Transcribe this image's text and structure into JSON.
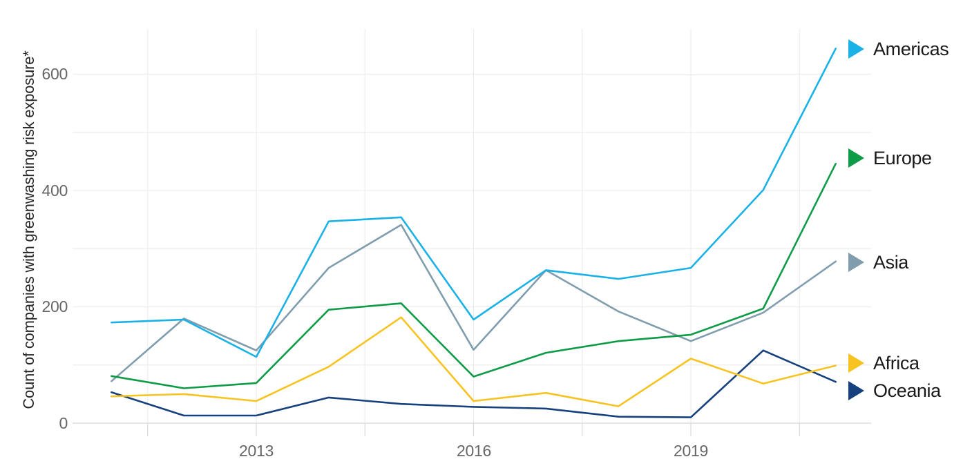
{
  "chart_data": {
    "type": "line",
    "title": "",
    "ylabel": "Count of companies with greenwashing risk exposure*",
    "xlabel": "",
    "x": [
      2011,
      2012,
      2013,
      2014,
      2015,
      2016,
      2017,
      2018,
      2019,
      2020,
      2021
    ],
    "x_tick_labels": [
      "2013",
      "2016",
      "2019"
    ],
    "x_tick_years": [
      2013,
      2016,
      2019
    ],
    "y_tick_labels": [
      "0",
      "200",
      "400",
      "600"
    ],
    "y_ticks": [
      0,
      200,
      400,
      600
    ],
    "ylim": [
      0,
      680
    ],
    "xlim": [
      2011,
      2021
    ],
    "grid": {
      "horizontal_values": [
        0,
        100,
        200,
        300,
        400,
        500,
        600
      ],
      "vertical_years": [
        2011.5,
        2013,
        2014.5,
        2016,
        2017.5,
        2019,
        2020.5
      ],
      "gridline_color": "#ededed",
      "zero_line_color": "#d8d8d8"
    },
    "legend_position": "right",
    "series": [
      {
        "name": "Americas",
        "color": "#1AB1E6",
        "values": [
          173,
          178,
          114,
          347,
          354,
          178,
          263,
          248,
          267,
          401,
          644
        ]
      },
      {
        "name": "Europe",
        "color": "#0E9B47",
        "values": [
          81,
          60,
          69,
          195,
          206,
          80,
          121,
          141,
          152,
          197,
          446
        ]
      },
      {
        "name": "Asia",
        "color": "#809DAE",
        "values": [
          72,
          180,
          125,
          267,
          341,
          126,
          263,
          192,
          141,
          190,
          278
        ]
      },
      {
        "name": "Africa",
        "color": "#F6C321",
        "values": [
          46,
          50,
          38,
          97,
          182,
          38,
          52,
          29,
          111,
          68,
          99
        ]
      },
      {
        "name": "Oceania",
        "color": "#17417D",
        "values": [
          53,
          13,
          13,
          44,
          33,
          28,
          25,
          11,
          10,
          125,
          71
        ]
      }
    ]
  }
}
